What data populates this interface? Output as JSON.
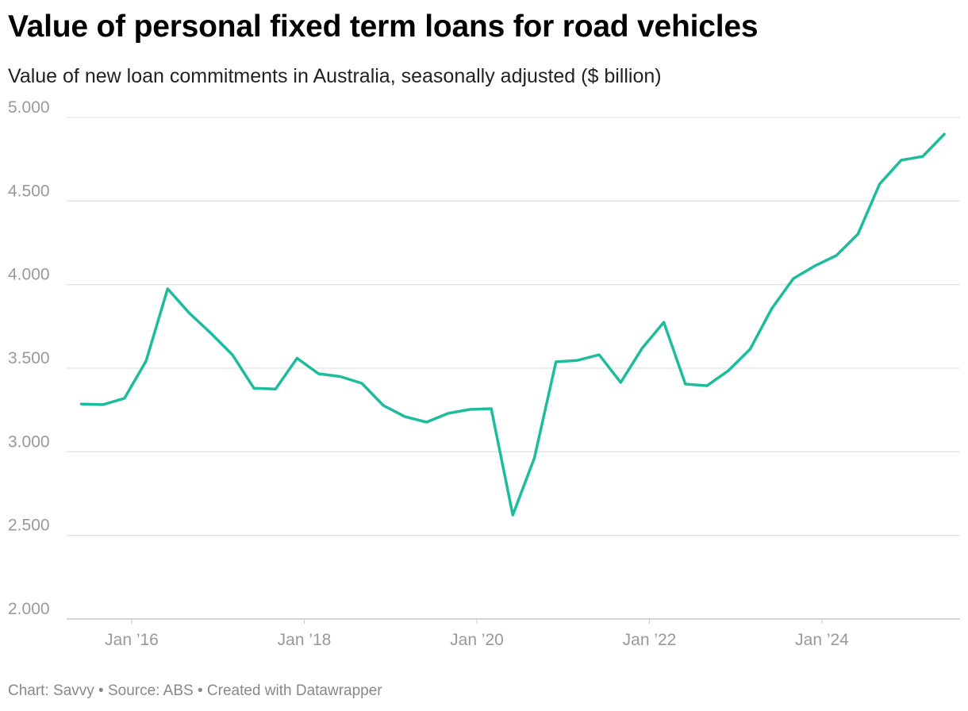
{
  "chart_data": {
    "type": "line",
    "title": "Value of personal fixed term loans for road vehicles",
    "subtitle": "Value of new loan commitments in Australia, seasonally adjusted ($ billion)",
    "footer": "Chart: Savvy • Source: ABS • Created with Datawrapper",
    "ylim": [
      2.0,
      5.0
    ],
    "yticks": [
      2.0,
      2.5,
      3.0,
      3.5,
      4.0,
      4.5,
      5.0
    ],
    "ytick_labels": [
      "2.000",
      "2.500",
      "3.000",
      "3.500",
      "4.000",
      "4.500",
      "5.000"
    ],
    "xticks": [
      "2016-01",
      "2018-01",
      "2020-01",
      "2022-01",
      "2024-01"
    ],
    "xtick_labels": [
      "Jan ’16",
      "Jan ’18",
      "Jan ’20",
      "Jan ’22",
      "Jan ’24"
    ],
    "grid": true,
    "line_color": "#1dbc9c",
    "x": [
      "2015-06",
      "2015-09",
      "2015-12",
      "2016-03",
      "2016-06",
      "2016-09",
      "2016-12",
      "2017-03",
      "2017-06",
      "2017-09",
      "2017-12",
      "2018-03",
      "2018-06",
      "2018-09",
      "2018-12",
      "2019-03",
      "2019-06",
      "2019-09",
      "2019-12",
      "2020-03",
      "2020-06",
      "2020-09",
      "2020-12",
      "2021-03",
      "2021-06",
      "2021-09",
      "2021-12",
      "2022-03",
      "2022-06",
      "2022-09",
      "2022-12",
      "2023-03",
      "2023-06",
      "2023-09",
      "2023-12",
      "2024-03",
      "2024-06",
      "2024-09",
      "2024-12",
      "2025-03",
      "2025-06"
    ],
    "values": [
      3.286,
      3.282,
      3.32,
      3.543,
      3.975,
      3.83,
      3.71,
      3.58,
      3.38,
      3.375,
      3.56,
      3.467,
      3.45,
      3.41,
      3.277,
      3.21,
      3.177,
      3.23,
      3.253,
      3.258,
      2.622,
      2.963,
      3.538,
      3.547,
      3.58,
      3.415,
      3.62,
      3.775,
      3.405,
      3.395,
      3.486,
      3.614,
      3.856,
      4.036,
      4.112,
      4.174,
      4.302,
      4.601,
      4.744,
      4.767,
      4.9
    ]
  }
}
